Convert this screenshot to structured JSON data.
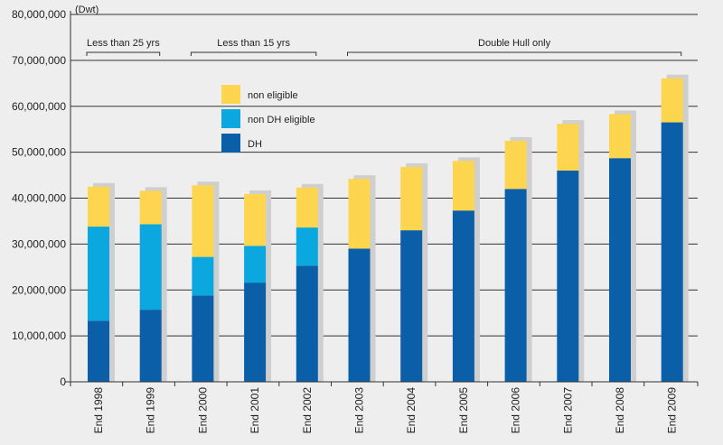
{
  "chart_data": {
    "type": "bar",
    "stacked": true,
    "unit_label": "(Dwt)",
    "categories": [
      "End 1998",
      "End 1999",
      "End 2000",
      "End 2001",
      "End 2002",
      "End 2003",
      "End 2004",
      "End 2005",
      "End 2006",
      "End 2007",
      "End 2008",
      "End 2009"
    ],
    "series": [
      {
        "name": "DH",
        "color": "#0a5fa8",
        "values": [
          13300000,
          15700000,
          18800000,
          21600000,
          25300000,
          29000000,
          33000000,
          37300000,
          42000000,
          46000000,
          48700000,
          56500000
        ]
      },
      {
        "name": "non DH eligible",
        "color": "#0aa8df",
        "values": [
          20500000,
          18600000,
          8400000,
          8000000,
          8300000,
          0,
          0,
          0,
          0,
          0,
          0,
          0
        ]
      },
      {
        "name": "non eligible",
        "color": "#fdd54f",
        "values": [
          8700000,
          7300000,
          15600000,
          11300000,
          8700000,
          15200000,
          13800000,
          10800000,
          10500000,
          10200000,
          9600000,
          9600000
        ]
      }
    ],
    "ylim": [
      0,
      80000000
    ],
    "yticks": [
      0,
      10000000,
      20000000,
      30000000,
      40000000,
      50000000,
      60000000,
      70000000,
      80000000
    ],
    "ytick_labels": [
      "0",
      "10,000,000",
      "20,000,000",
      "30,000,000",
      "40,000,000",
      "50,000,000",
      "60,000,000",
      "70,000,000",
      "80,000,000"
    ],
    "legend": {
      "position": "top-left",
      "entries": [
        "non eligible",
        "non DH eligible",
        "DH"
      ]
    },
    "annotations": [
      {
        "text": "Less than 25 yrs",
        "from_category": 0,
        "to_category": 1
      },
      {
        "text": "Less than 15 yrs",
        "from_category": 2,
        "to_category": 4
      },
      {
        "text": "Double Hull only",
        "from_category": 5,
        "to_category": 11
      }
    ],
    "shadow_color": "#cfcfcf"
  }
}
